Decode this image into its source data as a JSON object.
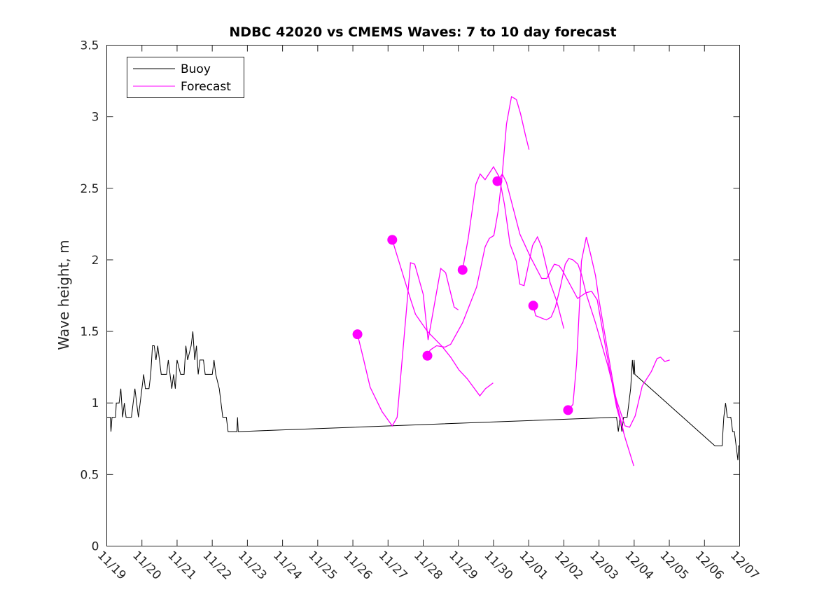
{
  "chart_data": {
    "type": "line",
    "title": "NDBC 42020 vs CMEMS Waves: 7 to 10 day forecast",
    "xlabel": "",
    "ylabel": "Wave height, m",
    "xlim": [
      0,
      18
    ],
    "ylim": [
      0,
      3.5
    ],
    "x_unit": "days since 11/19",
    "xticks": [
      0,
      1,
      2,
      3,
      4,
      5,
      6,
      7,
      8,
      9,
      10,
      11,
      12,
      13,
      14,
      15,
      16,
      17,
      18
    ],
    "xtick_labels": [
      "11/19",
      "11/20",
      "11/21",
      "11/22",
      "11/23",
      "11/24",
      "11/25",
      "11/26",
      "11/27",
      "11/28",
      "11/29",
      "11/30",
      "12/01",
      "12/02",
      "12/03",
      "12/04",
      "12/05",
      "12/06",
      "12/07"
    ],
    "yticks": [
      0,
      0.5,
      1,
      1.5,
      2,
      2.5,
      3,
      3.5
    ],
    "ytick_labels": [
      "0",
      "0.5",
      "1",
      "1.5",
      "2",
      "2.5",
      "3",
      "3.5"
    ],
    "grid": false,
    "legend": {
      "placement": "top-left",
      "entries": [
        "Buoy",
        "Forecast"
      ]
    },
    "colors": {
      "buoy": "#000000",
      "forecast": "#ff00ff"
    },
    "buoy": {
      "name": "Buoy",
      "x": [
        0,
        0.1,
        0.12,
        0.15,
        0.25,
        0.27,
        0.35,
        0.4,
        0.45,
        0.5,
        0.55,
        0.7,
        0.75,
        0.8,
        0.85,
        0.9,
        0.95,
        1.0,
        1.05,
        1.1,
        1.2,
        1.25,
        1.3,
        1.35,
        1.4,
        1.45,
        1.5,
        1.55,
        1.7,
        1.75,
        1.8,
        1.85,
        1.9,
        1.95,
        2.0,
        2.1,
        2.2,
        2.25,
        2.3,
        2.4,
        2.45,
        2.5,
        2.55,
        2.6,
        2.65,
        2.75,
        2.8,
        3.0,
        3.05,
        3.1,
        3.2,
        3.25,
        3.3,
        3.4,
        3.45,
        3.7,
        3.72,
        3.74,
        14.5,
        14.55,
        14.6,
        14.65,
        14.7,
        14.8,
        14.85,
        14.9,
        14.95,
        14.98,
        15.0,
        15.02,
        17.3,
        17.5,
        17.55,
        17.6,
        17.65,
        17.75,
        17.8,
        17.85,
        17.9,
        17.95,
        17.97,
        18.0
      ],
      "y": [
        0.9,
        0.9,
        0.8,
        0.9,
        0.9,
        1.0,
        1.0,
        1.1,
        0.9,
        1.0,
        0.9,
        0.9,
        1.0,
        1.1,
        1.0,
        0.9,
        1.0,
        1.1,
        1.2,
        1.1,
        1.1,
        1.2,
        1.4,
        1.4,
        1.3,
        1.4,
        1.3,
        1.2,
        1.2,
        1.3,
        1.2,
        1.1,
        1.2,
        1.1,
        1.3,
        1.2,
        1.2,
        1.4,
        1.3,
        1.4,
        1.5,
        1.3,
        1.4,
        1.2,
        1.3,
        1.3,
        1.2,
        1.2,
        1.3,
        1.2,
        1.1,
        1.0,
        0.9,
        0.9,
        0.8,
        0.8,
        0.9,
        0.8,
        0.9,
        0.8,
        0.9,
        0.8,
        0.9,
        0.9,
        1.0,
        1.1,
        1.3,
        1.2,
        1.3,
        1.2,
        0.7,
        0.7,
        0.9,
        1.0,
        0.9,
        0.9,
        0.8,
        0.8,
        0.7,
        0.6,
        0.7,
        0.7
      ]
    },
    "forecast_series": [
      {
        "name": "Forecast",
        "x": [
          7.13,
          7.29,
          7.49,
          7.83,
          8.12,
          8.26,
          8.64,
          8.76,
          9.0,
          9.14,
          9.5,
          9.64,
          9.88,
          10.0
        ],
        "y": [
          1.48,
          1.32,
          1.11,
          0.94,
          0.84,
          0.9,
          1.98,
          1.97,
          1.76,
          1.44,
          1.94,
          1.91,
          1.67,
          1.65
        ]
      },
      {
        "name": "Forecast",
        "x": [
          8.12,
          8.52,
          8.66,
          8.78,
          9.12,
          9.52,
          9.78,
          10.02,
          10.25,
          10.61,
          10.77,
          10.99
        ],
        "y": [
          2.14,
          1.82,
          1.71,
          1.62,
          1.5,
          1.4,
          1.32,
          1.23,
          1.17,
          1.05,
          1.1,
          1.14
        ]
      },
      {
        "name": "Forecast",
        "x": [
          9.12,
          9.2,
          9.38,
          9.62,
          9.78,
          10.12,
          10.52,
          10.76,
          10.88,
          11.01,
          11.13,
          11.25,
          11.37,
          11.75,
          12.05,
          12.37,
          12.51,
          12.73,
          12.86,
          12.95,
          13.39,
          13.63,
          13.79,
          13.95,
          14.2,
          14.5,
          14.75,
          14.99
        ],
        "y": [
          1.33,
          1.37,
          1.4,
          1.39,
          1.41,
          1.56,
          1.81,
          2.09,
          2.15,
          2.17,
          2.34,
          2.6,
          2.54,
          2.18,
          2.02,
          1.87,
          1.87,
          1.97,
          1.96,
          1.93,
          1.73,
          1.77,
          1.78,
          1.72,
          1.37,
          0.97,
          0.75,
          0.56
        ]
      },
      {
        "name": "Forecast",
        "x": [
          10.12,
          10.28,
          10.5,
          10.62,
          10.76,
          11.0,
          11.16,
          11.31,
          11.47,
          11.65,
          11.75,
          11.87,
          12.11,
          12.25,
          12.37,
          12.61,
          12.8,
          13.0
        ],
        "y": [
          1.93,
          2.15,
          2.53,
          2.6,
          2.56,
          2.65,
          2.58,
          2.39,
          2.11,
          1.99,
          1.83,
          1.82,
          2.1,
          2.16,
          2.09,
          1.84,
          1.71,
          1.52
        ]
      },
      {
        "name": "Forecast",
        "x": [
          11.11,
          11.25,
          11.37,
          11.51,
          11.65,
          11.77,
          11.91,
          12.01
        ],
        "y": [
          2.55,
          2.6,
          2.95,
          3.14,
          3.12,
          3.02,
          2.87,
          2.77
        ]
      },
      {
        "name": "Forecast",
        "x": [
          12.13,
          12.2,
          12.5,
          12.64,
          12.76,
          12.9,
          13.04,
          13.14,
          13.26,
          13.4,
          13.5,
          13.64,
          13.9,
          14.24,
          14.5,
          14.74,
          14.87,
          15.03,
          15.23,
          15.49,
          15.65,
          15.75,
          15.87,
          16.01
        ],
        "y": [
          1.68,
          1.61,
          1.58,
          1.6,
          1.67,
          1.81,
          1.97,
          2.01,
          2.0,
          1.97,
          1.9,
          1.76,
          1.56,
          1.27,
          1.02,
          0.84,
          0.83,
          0.91,
          1.12,
          1.22,
          1.31,
          1.32,
          1.29,
          1.3
        ]
      },
      {
        "name": "Forecast",
        "x": [
          13.12,
          13.26,
          13.36,
          13.46,
          13.5,
          13.64,
          13.76,
          13.9,
          14.0,
          14.24,
          14.5,
          14.7
        ],
        "y": [
          0.95,
          0.99,
          1.27,
          1.76,
          1.99,
          2.16,
          2.04,
          1.89,
          1.72,
          1.37,
          1.0,
          0.8
        ]
      }
    ]
  }
}
